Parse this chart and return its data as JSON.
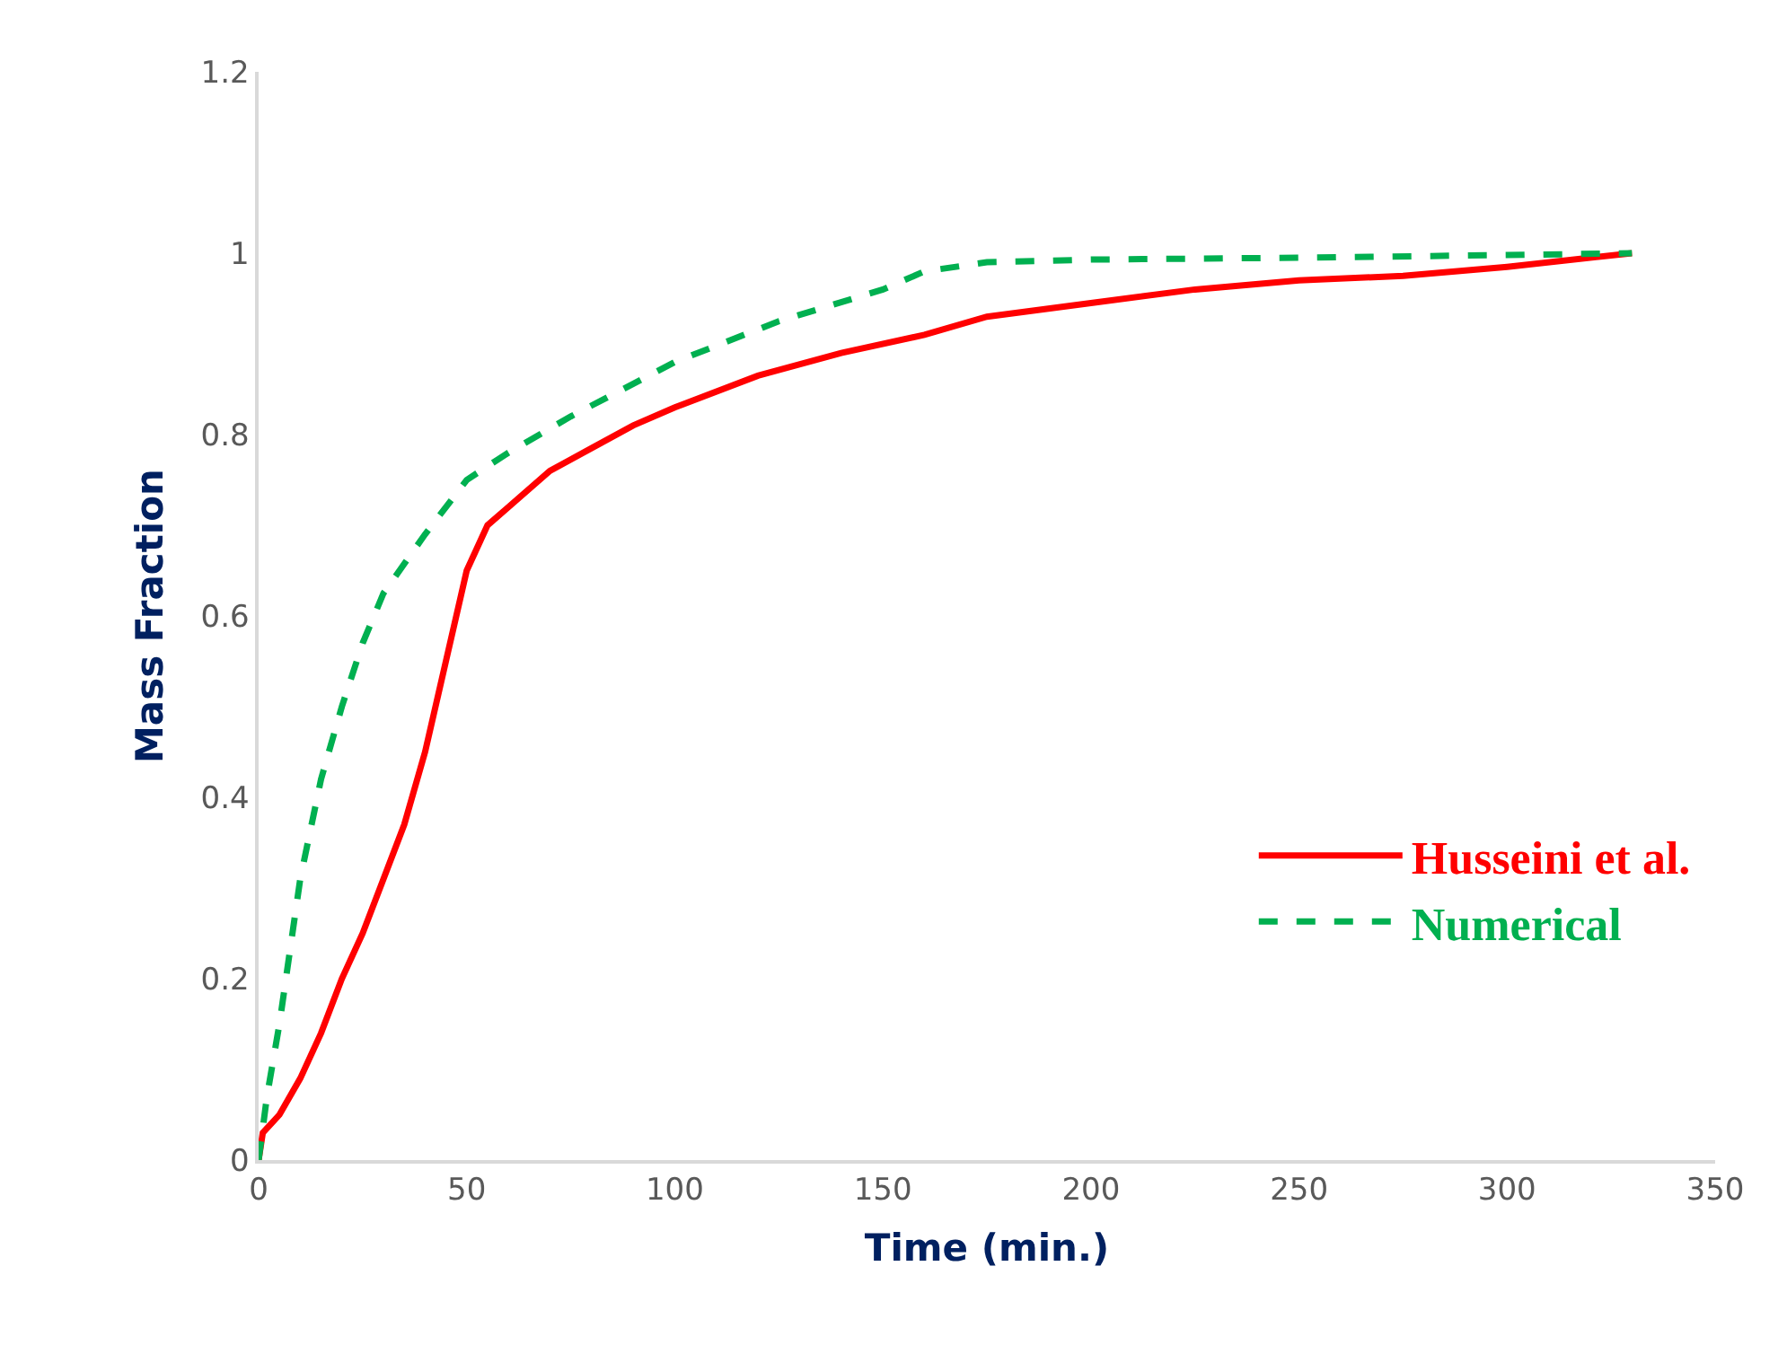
{
  "chart_data": {
    "type": "line",
    "xlabel": "Time (min.)",
    "ylabel": "Mass Fraction",
    "xlim": [
      0,
      350
    ],
    "xticks": [
      0,
      50,
      100,
      150,
      200,
      250,
      300,
      350
    ],
    "ylim": [
      0,
      1.2
    ],
    "yticks": [
      0,
      0.2,
      0.4,
      0.6,
      0.8,
      1,
      1.2
    ],
    "legend": "bottom right",
    "marker": "none",
    "series": [
      {
        "name": "Husseini et al.",
        "color": "#ff0000",
        "line_style": "solid",
        "x": [
          0,
          1,
          5,
          10,
          15,
          20,
          25,
          30,
          35,
          40,
          45,
          50,
          55,
          60,
          65,
          70,
          80,
          90,
          100,
          120,
          140,
          160,
          175,
          200,
          225,
          250,
          275,
          300,
          330
        ],
        "values": [
          0,
          0.03,
          0.05,
          0.09,
          0.14,
          0.2,
          0.25,
          0.31,
          0.37,
          0.45,
          0.55,
          0.65,
          0.7,
          0.72,
          0.74,
          0.76,
          0.785,
          0.81,
          0.83,
          0.865,
          0.89,
          0.91,
          0.93,
          0.945,
          0.96,
          0.97,
          0.975,
          0.985,
          1.0
        ]
      },
      {
        "name": "Numerical",
        "color": "#00b050",
        "line_style": "dashed",
        "x": [
          0,
          2,
          5,
          10,
          15,
          20,
          25,
          30,
          40,
          50,
          60,
          75,
          100,
          125,
          150,
          160,
          175,
          200,
          250,
          300,
          330
        ],
        "values": [
          0,
          0.07,
          0.15,
          0.31,
          0.42,
          0.5,
          0.57,
          0.625,
          0.69,
          0.75,
          0.78,
          0.82,
          0.88,
          0.925,
          0.96,
          0.98,
          0.99,
          0.993,
          0.995,
          0.998,
          1.0
        ]
      }
    ]
  }
}
